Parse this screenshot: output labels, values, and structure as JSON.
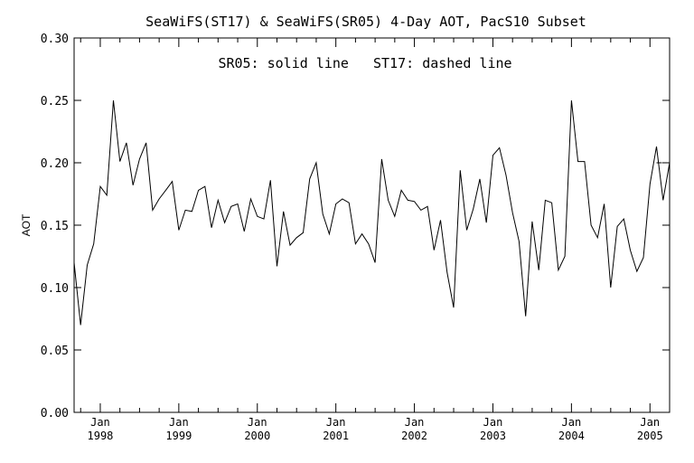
{
  "chart_data": {
    "type": "line",
    "title": "SeaWiFS(ST17) & SeaWiFS(SR05) 4-Day AOT, PacS10 Subset",
    "annotation": "SR05: solid line   ST17: dashed line",
    "xlabel": "",
    "ylabel": "AOT",
    "ylim": [
      0.0,
      0.3
    ],
    "yticks": [
      "0.00",
      "0.05",
      "0.10",
      "0.15",
      "0.20",
      "0.25",
      "0.30"
    ],
    "xlim": [
      "1997-09",
      "2005-04"
    ],
    "xticks": [
      {
        "month": "Jan",
        "year": "1998",
        "date": "1998-01"
      },
      {
        "month": "Jan",
        "year": "1999",
        "date": "1999-01"
      },
      {
        "month": "Jan",
        "year": "2000",
        "date": "2000-01"
      },
      {
        "month": "Jan",
        "year": "2001",
        "date": "2001-01"
      },
      {
        "month": "Jan",
        "year": "2002",
        "date": "2002-01"
      },
      {
        "month": "Jan",
        "year": "2003",
        "date": "2003-01"
      },
      {
        "month": "Jan",
        "year": "2004",
        "date": "2004-01"
      },
      {
        "month": "Jan",
        "year": "2005",
        "date": "2005-01"
      }
    ],
    "grid": false,
    "series": [
      {
        "name": "SR05",
        "style": "solid",
        "color": "#000000",
        "points": [
          [
            "1997-09",
            0.12
          ],
          [
            "1997-10",
            0.07
          ],
          [
            "1997-11",
            0.118
          ],
          [
            "1997-12",
            0.135
          ],
          [
            "1998-01",
            0.181
          ],
          [
            "1998-02",
            0.174
          ],
          [
            "1998-03",
            0.25
          ],
          [
            "1998-04",
            0.201
          ],
          [
            "1998-05",
            0.216
          ],
          [
            "1998-06",
            0.182
          ],
          [
            "1998-07",
            0.203
          ],
          [
            "1998-08",
            0.216
          ],
          [
            "1998-09",
            0.162
          ],
          [
            "1998-10",
            0.171
          ],
          [
            "1998-11",
            0.178
          ],
          [
            "1998-12",
            0.185
          ],
          [
            "1999-01",
            0.146
          ],
          [
            "1999-02",
            0.162
          ],
          [
            "1999-03",
            0.161
          ],
          [
            "1999-04",
            0.178
          ],
          [
            "1999-05",
            0.181
          ],
          [
            "1999-06",
            0.148
          ],
          [
            "1999-07",
            0.17
          ],
          [
            "1999-08",
            0.152
          ],
          [
            "1999-09",
            0.165
          ],
          [
            "1999-10",
            0.167
          ],
          [
            "1999-11",
            0.145
          ],
          [
            "1999-12",
            0.171
          ],
          [
            "2000-01",
            0.157
          ],
          [
            "2000-02",
            0.155
          ],
          [
            "2000-03",
            0.186
          ],
          [
            "2000-04",
            0.117
          ],
          [
            "2000-05",
            0.161
          ],
          [
            "2000-06",
            0.134
          ],
          [
            "2000-07",
            0.14
          ],
          [
            "2000-08",
            0.144
          ],
          [
            "2000-09",
            0.187
          ],
          [
            "2000-10",
            0.2
          ],
          [
            "2000-11",
            0.159
          ],
          [
            "2000-12",
            0.143
          ],
          [
            "2001-01",
            0.167
          ],
          [
            "2001-02",
            0.171
          ],
          [
            "2001-03",
            0.168
          ],
          [
            "2001-04",
            0.135
          ],
          [
            "2001-05",
            0.143
          ],
          [
            "2001-06",
            0.135
          ],
          [
            "2001-07",
            0.12
          ],
          [
            "2001-08",
            0.203
          ],
          [
            "2001-09",
            0.17
          ],
          [
            "2001-10",
            0.157
          ],
          [
            "2001-11",
            0.178
          ],
          [
            "2001-12",
            0.17
          ],
          [
            "2002-01",
            0.169
          ],
          [
            "2002-02",
            0.162
          ],
          [
            "2002-03",
            0.165
          ],
          [
            "2002-04",
            0.13
          ],
          [
            "2002-05",
            0.154
          ],
          [
            "2002-06",
            0.112
          ],
          [
            "2002-07",
            0.084
          ],
          [
            "2002-08",
            0.194
          ],
          [
            "2002-09",
            0.146
          ],
          [
            "2002-10",
            0.163
          ],
          [
            "2002-11",
            0.187
          ],
          [
            "2002-12",
            0.152
          ],
          [
            "2003-01",
            0.206
          ],
          [
            "2003-02",
            0.212
          ],
          [
            "2003-03",
            0.19
          ],
          [
            "2003-04",
            0.16
          ],
          [
            "2003-05",
            0.137
          ],
          [
            "2003-06",
            0.077
          ],
          [
            "2003-07",
            0.153
          ],
          [
            "2003-08",
            0.114
          ],
          [
            "2003-09",
            0.17
          ],
          [
            "2003-10",
            0.168
          ],
          [
            "2003-11",
            0.114
          ],
          [
            "2003-12",
            0.125
          ],
          [
            "2004-01",
            0.25
          ],
          [
            "2004-02",
            0.201
          ],
          [
            "2004-03",
            0.201
          ],
          [
            "2004-04",
            0.15
          ],
          [
            "2004-05",
            0.14
          ],
          [
            "2004-06",
            0.167
          ],
          [
            "2004-07",
            0.1
          ],
          [
            "2004-08",
            0.149
          ],
          [
            "2004-09",
            0.155
          ],
          [
            "2004-10",
            0.13
          ],
          [
            "2004-11",
            0.113
          ],
          [
            "2004-12",
            0.124
          ],
          [
            "2005-01",
            0.183
          ],
          [
            "2005-02",
            0.213
          ],
          [
            "2005-03",
            0.17
          ],
          [
            "2005-04",
            0.2
          ]
        ]
      },
      {
        "name": "ST17",
        "style": "dashed",
        "color": "#000000",
        "points": [
          [
            "2005-02",
            0.2
          ],
          [
            "2005-04",
            0.2
          ]
        ]
      }
    ]
  }
}
